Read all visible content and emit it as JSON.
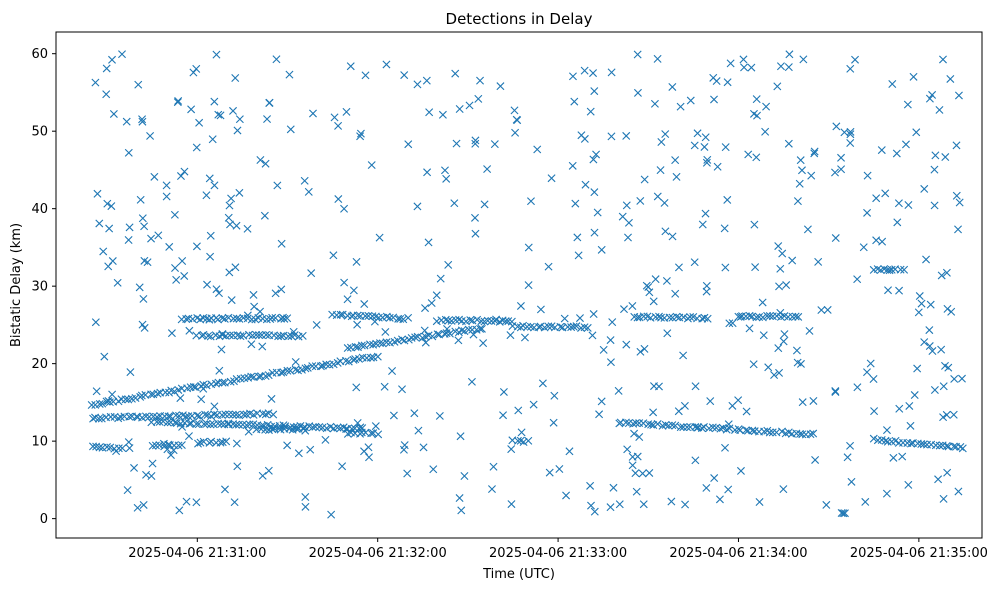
{
  "chart_data": {
    "type": "scatter",
    "title": "Detections in Delay",
    "xlabel": "Time (UTC)",
    "ylabel": "Bistatic Delay (km)",
    "xlim": [
      "2025-04-06 21:30:13",
      "2025-04-06 21:35:21"
    ],
    "ylim": [
      -2.5,
      62.8
    ],
    "x_ticks": [
      "2025-04-06 21:31:00",
      "2025-04-06 21:32:00",
      "2025-04-06 21:33:00",
      "2025-04-06 21:34:00",
      "2025-04-06 21:35:00"
    ],
    "y_ticks": [
      0,
      10,
      20,
      30,
      40,
      50,
      60
    ],
    "grid": false,
    "marker": "x",
    "color": "#1f77b4",
    "series": [
      {
        "name": "",
        "marker": "x",
        "tracks": [
          {
            "x": [
              "2025-04-06 21:30:25",
              "2025-04-06 21:32:00"
            ],
            "y": [
              14.7,
              21.0
            ]
          },
          {
            "x": [
              "2025-04-06 21:31:50",
              "2025-04-06 21:32:35"
            ],
            "y": [
              22.0,
              24.6
            ]
          },
          {
            "x": [
              "2025-04-06 21:30:25",
              "2025-04-06 21:31:25"
            ],
            "y": [
              13.0,
              13.5
            ]
          },
          {
            "x": [
              "2025-04-06 21:30:45",
              "2025-04-06 21:31:55"
            ],
            "y": [
              12.5,
              11.6
            ]
          },
          {
            "x": [
              "2025-04-06 21:33:20",
              "2025-04-06 21:34:25"
            ],
            "y": [
              12.4,
              10.9
            ]
          },
          {
            "x": [
              "2025-04-06 21:34:45",
              "2025-04-06 21:35:15"
            ],
            "y": [
              10.2,
              9.1
            ]
          },
          {
            "x": [
              "2025-04-06 21:30:25",
              "2025-04-06 21:30:35"
            ],
            "y": [
              9.2,
              9.1
            ]
          },
          {
            "x": [
              "2025-04-06 21:30:45",
              "2025-04-06 21:30:55"
            ],
            "y": [
              9.4,
              9.5
            ]
          },
          {
            "x": [
              "2025-04-06 21:31:00",
              "2025-04-06 21:31:10"
            ],
            "y": [
              9.8,
              9.9
            ]
          },
          {
            "x": [
              "2025-04-06 21:31:20",
              "2025-04-06 21:31:35"
            ],
            "y": [
              11.5,
              11.6
            ]
          },
          {
            "x": [
              "2025-04-06 21:30:55",
              "2025-04-06 21:31:30"
            ],
            "y": [
              25.8,
              25.8
            ]
          },
          {
            "x": [
              "2025-04-06 21:31:00",
              "2025-04-06 21:31:35"
            ],
            "y": [
              23.6,
              23.6
            ]
          },
          {
            "x": [
              "2025-04-06 21:31:45",
              "2025-04-06 21:32:10"
            ],
            "y": [
              26.3,
              25.8
            ]
          },
          {
            "x": [
              "2025-04-06 21:32:20",
              "2025-04-06 21:32:45"
            ],
            "y": [
              25.6,
              25.5
            ]
          },
          {
            "x": [
              "2025-04-06 21:32:45",
              "2025-04-06 21:33:10"
            ],
            "y": [
              24.8,
              24.7
            ]
          },
          {
            "x": [
              "2025-04-06 21:33:25",
              "2025-04-06 21:33:50"
            ],
            "y": [
              26.0,
              25.9
            ]
          },
          {
            "x": [
              "2025-04-06 21:34:00",
              "2025-04-06 21:34:20"
            ],
            "y": [
              26.1,
              26.0
            ]
          },
          {
            "x": [
              "2025-04-06 21:34:45",
              "2025-04-06 21:34:55"
            ],
            "y": [
              32.1,
              32.2
            ]
          },
          {
            "x": [
              "2025-04-06 21:31:50",
              "2025-04-06 21:32:00"
            ],
            "y": [
              11.0,
              11.0
            ]
          },
          {
            "x": [
              "2025-04-06 21:32:45",
              "2025-04-06 21:32:50"
            ],
            "y": [
              10.0,
              10.0
            ]
          }
        ]
      }
    ],
    "scattered_note_free": true
  }
}
